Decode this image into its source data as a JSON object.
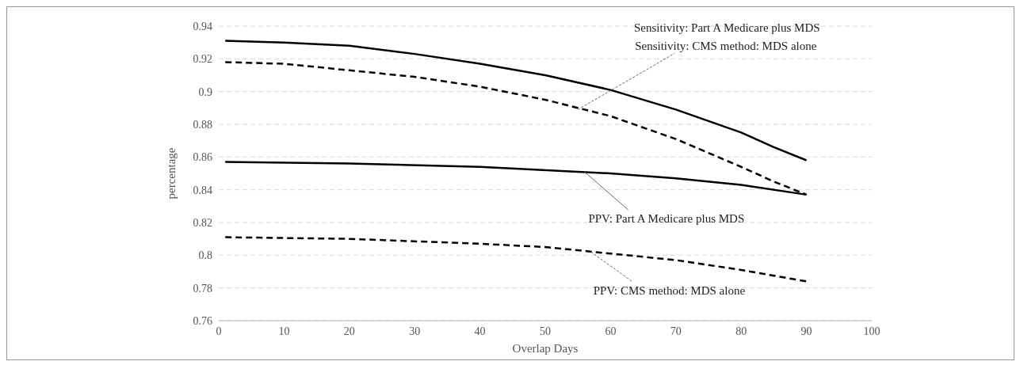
{
  "chart_data": {
    "type": "line",
    "xlabel": "Overlap Days",
    "ylabel": "percentage",
    "xlim": [
      0,
      100
    ],
    "xticks": [
      0,
      10,
      20,
      30,
      40,
      50,
      60,
      70,
      80,
      90,
      100
    ],
    "ylim": [
      0.76,
      0.94
    ],
    "yticks": [
      0.76,
      0.78,
      0.8,
      0.82,
      0.84,
      0.86,
      0.88,
      0.9,
      0.92,
      0.94
    ],
    "grid": "y",
    "marker": "none",
    "series": [
      {
        "color": "#000000",
        "line_style": "solid",
        "x": [
          1,
          10,
          20,
          30,
          40,
          50,
          60,
          70,
          80,
          85,
          90
        ],
        "values": [
          0.931,
          0.93,
          0.928,
          0.923,
          0.917,
          0.91,
          0.901,
          0.889,
          0.875,
          0.866,
          0.858
        ]
      },
      {
        "color": "#000000",
        "line_style": "dashed",
        "x": [
          1,
          10,
          20,
          30,
          40,
          50,
          60,
          70,
          80,
          85,
          90
        ],
        "values": [
          0.918,
          0.917,
          0.913,
          0.909,
          0.903,
          0.895,
          0.885,
          0.871,
          0.854,
          0.845,
          0.837
        ]
      },
      {
        "color": "#000000",
        "line_style": "solid",
        "x": [
          1,
          20,
          40,
          60,
          70,
          80,
          90
        ],
        "values": [
          0.857,
          0.856,
          0.854,
          0.85,
          0.847,
          0.843,
          0.837
        ]
      },
      {
        "color": "#000000",
        "line_style": "dashed",
        "x": [
          1,
          20,
          40,
          50,
          60,
          70,
          80,
          90
        ],
        "values": [
          0.811,
          0.81,
          0.807,
          0.805,
          0.801,
          0.797,
          0.791,
          0.784
        ]
      }
    ],
    "annotations": [
      "Sensitivity: Part A Medicare plus MDS",
      {
        "text": "Sensitivity: CMS method: MDS alone",
        "x": 55,
        "y": 0.889
      },
      {
        "text": "PPV: Part A Medicare plus MDS",
        "x": 56,
        "y": 0.851
      },
      {
        "text": "PPV: CMS method: MDS alone",
        "x": 57,
        "y": 0.802
      }
    ]
  }
}
